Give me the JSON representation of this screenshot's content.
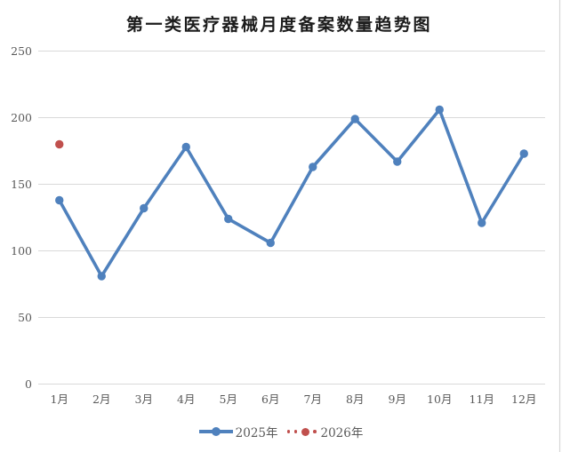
{
  "title": "第一类医疗器械月度备案数量趋势图",
  "colors": {
    "series_2025": "#4F81BD",
    "series_2026": "#C0504D",
    "gridline": "#D9D9D9",
    "right_border": "#D6D6D6",
    "axis_label": "#595959",
    "title_color": "#1C1C1C"
  },
  "legend": {
    "items": [
      {
        "label": "2025年"
      },
      {
        "label": "2026年"
      }
    ]
  },
  "chart_data": {
    "type": "line",
    "title": "第一类医疗器械月度备案数量趋势图",
    "categories": [
      "1月",
      "2月",
      "3月",
      "4月",
      "5月",
      "6月",
      "7月",
      "8月",
      "9月",
      "10月",
      "11月",
      "12月"
    ],
    "series": [
      {
        "name": "2025年",
        "color": "#4F81BD",
        "style": "solid",
        "values": [
          138,
          81,
          132,
          178,
          124,
          106,
          163,
          199,
          167,
          206,
          121,
          173
        ]
      },
      {
        "name": "2026年",
        "color": "#C0504D",
        "style": "dotted",
        "values": [
          180,
          null,
          null,
          null,
          null,
          null,
          null,
          null,
          null,
          null,
          null,
          null
        ]
      }
    ],
    "xlabel": "",
    "ylabel": "",
    "ylim": [
      0,
      250
    ],
    "ytick_step": 50,
    "grid": true,
    "legend_position": "bottom"
  }
}
